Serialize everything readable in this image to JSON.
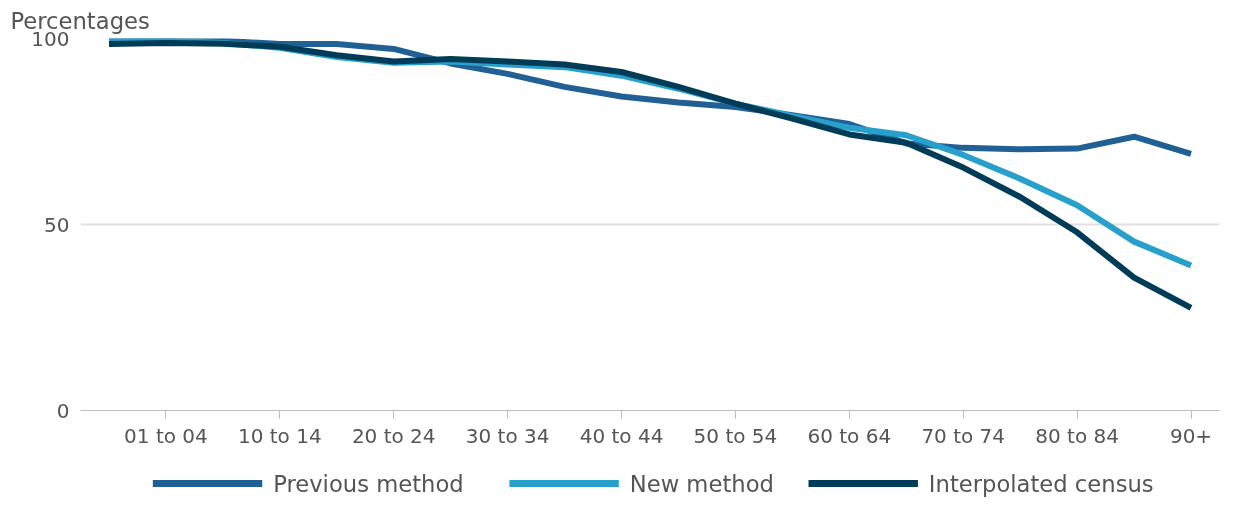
{
  "chart_data": {
    "type": "line",
    "ylabel": "Percentages",
    "categories": [
      null,
      "01 to 04",
      null,
      "10 to 14",
      null,
      "20 to 24",
      null,
      "30 to 34",
      null,
      "40 to 44",
      null,
      "50 to 54",
      null,
      "60 to 64",
      null,
      "70 to 74",
      null,
      "80 to 84",
      null,
      "90+"
    ],
    "series": [
      {
        "name": "Previous method",
        "color": "#206095",
        "values": [
          100,
          100,
          99.4,
          98.5,
          98.5,
          97.2,
          93.3,
          90.5,
          87,
          84.4,
          82.8,
          81.6,
          79.4,
          77,
          71.8,
          70.6,
          70.2,
          70.4,
          73.6,
          69
        ]
      },
      {
        "name": "New method",
        "color": "#27a0cc",
        "values": [
          99.2,
          99.4,
          98.8,
          97.5,
          95,
          93.5,
          93.8,
          93,
          92.3,
          90,
          86.5,
          82.5,
          79.2,
          76,
          74,
          68.7,
          62.3,
          55.2,
          45.4,
          39
        ]
      },
      {
        "name": "Interpolated census",
        "color": "#003c57",
        "values": [
          98.5,
          98.8,
          98.6,
          97.8,
          95.5,
          93.8,
          94.5,
          93.8,
          93,
          91,
          87,
          82.5,
          78.5,
          74.2,
          72,
          65.3,
          57.4,
          47.9,
          35.7,
          27.6
        ]
      }
    ],
    "ylim": [
      0,
      100
    ],
    "yticks": [
      0,
      50,
      100
    ],
    "grid": "y",
    "legend": "bottom",
    "line_style": "solid",
    "marker": "none"
  }
}
